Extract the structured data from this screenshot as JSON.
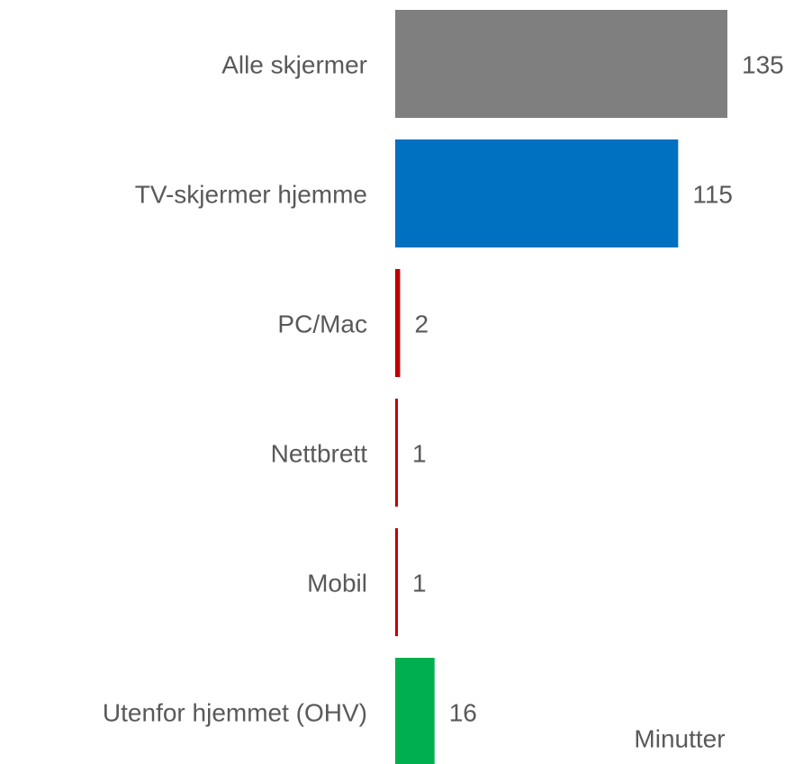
{
  "chart_data": {
    "type": "bar",
    "orientation": "horizontal",
    "categories": [
      "Alle skjermer",
      "TV-skjermer hjemme",
      "PC/Mac",
      "Nettbrett",
      "Mobil",
      "Utenfor hjemmet (OHV)"
    ],
    "values": [
      135,
      115,
      2,
      1,
      1,
      16
    ],
    "colors": [
      "#7f7f7f",
      "#0070c0",
      "#c00000",
      "#c00000",
      "#c00000",
      "#00b050"
    ],
    "xlim": [
      0,
      135
    ],
    "xlabel": "Minutter"
  }
}
